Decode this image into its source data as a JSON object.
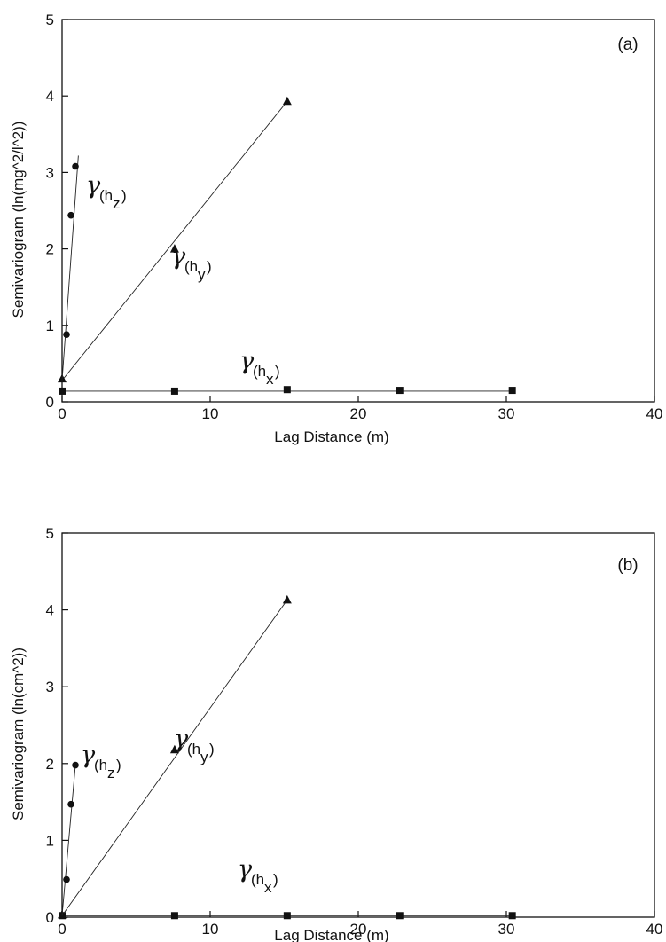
{
  "chart_data": [
    {
      "type": "line",
      "panel_label": "(a)",
      "xlabel": "Lag Distance (m)",
      "ylabel": "Semivariogram (ln(mg^2/l^2))",
      "xlim": [
        0,
        40
      ],
      "ylim": [
        0,
        5
      ],
      "x_ticks": [
        "0",
        "10",
        "20",
        "30",
        "40"
      ],
      "y_ticks": [
        "0",
        "1",
        "2",
        "3",
        "4",
        "5"
      ],
      "grid": false,
      "series": [
        {
          "marker": "square",
          "points": [
            [
              0,
              0.14
            ],
            [
              7.6,
              0.14
            ],
            [
              15.2,
              0.16
            ],
            [
              22.8,
              0.15
            ],
            [
              30.4,
              0.15
            ]
          ],
          "fit": [
            [
              0,
              0.14
            ],
            [
              30.4,
              0.14
            ]
          ],
          "label": {
            "greek": "γ",
            "open": "(h",
            "sub": "x",
            "close": ")"
          }
        },
        {
          "marker": "triangle",
          "points": [
            [
              0,
              0.3
            ],
            [
              7.6,
              2.0
            ],
            [
              15.2,
              3.93
            ]
          ],
          "fit": [
            [
              0,
              0.28
            ],
            [
              15.2,
              3.93
            ]
          ],
          "label": {
            "greek": "γ",
            "open": "(h",
            "sub": "y",
            "close": ")"
          }
        },
        {
          "marker": "circle",
          "points": [
            [
              0.3,
              0.88
            ],
            [
              0.6,
              2.44
            ],
            [
              0.9,
              3.08
            ]
          ],
          "fit": [
            [
              0,
              0.28
            ],
            [
              1.1,
              3.22
            ]
          ],
          "label": {
            "greek": "γ",
            "open": "(h",
            "sub": "z",
            "close": ")"
          }
        }
      ]
    },
    {
      "type": "line",
      "panel_label": "(b)",
      "xlabel": "Lag Distance (m)",
      "ylabel": "Semivariogram (ln(cm^2))",
      "xlim": [
        0,
        40
      ],
      "ylim": [
        0,
        5
      ],
      "x_ticks": [
        "0",
        "10",
        "20",
        "30",
        "40"
      ],
      "y_ticks": [
        "0",
        "1",
        "2",
        "3",
        "4",
        "5"
      ],
      "grid": false,
      "series": [
        {
          "marker": "square",
          "points": [
            [
              0,
              0.02
            ],
            [
              7.6,
              0.02
            ],
            [
              15.2,
              0.02
            ],
            [
              22.8,
              0.02
            ],
            [
              30.4,
              0.02
            ]
          ],
          "fit": [
            [
              0,
              0.02
            ],
            [
              30.4,
              0.02
            ]
          ],
          "label": {
            "greek": "γ",
            "open": "(h",
            "sub": "x",
            "close": ")"
          }
        },
        {
          "marker": "triangle",
          "points": [
            [
              0,
              0.03
            ],
            [
              7.6,
              2.18
            ],
            [
              15.2,
              4.13
            ]
          ],
          "fit": [
            [
              0,
              0.02
            ],
            [
              15.2,
              4.13
            ]
          ],
          "label": {
            "greek": "γ",
            "open": "(h",
            "sub": "y",
            "close": ")"
          }
        },
        {
          "marker": "circle",
          "points": [
            [
              0.3,
              0.49
            ],
            [
              0.6,
              1.47
            ],
            [
              0.9,
              1.98
            ]
          ],
          "fit": [
            [
              0,
              0.02
            ],
            [
              0.9,
              1.98
            ]
          ],
          "label": {
            "greek": "γ",
            "open": "(h",
            "sub": "z",
            "close": ")"
          }
        }
      ]
    }
  ]
}
